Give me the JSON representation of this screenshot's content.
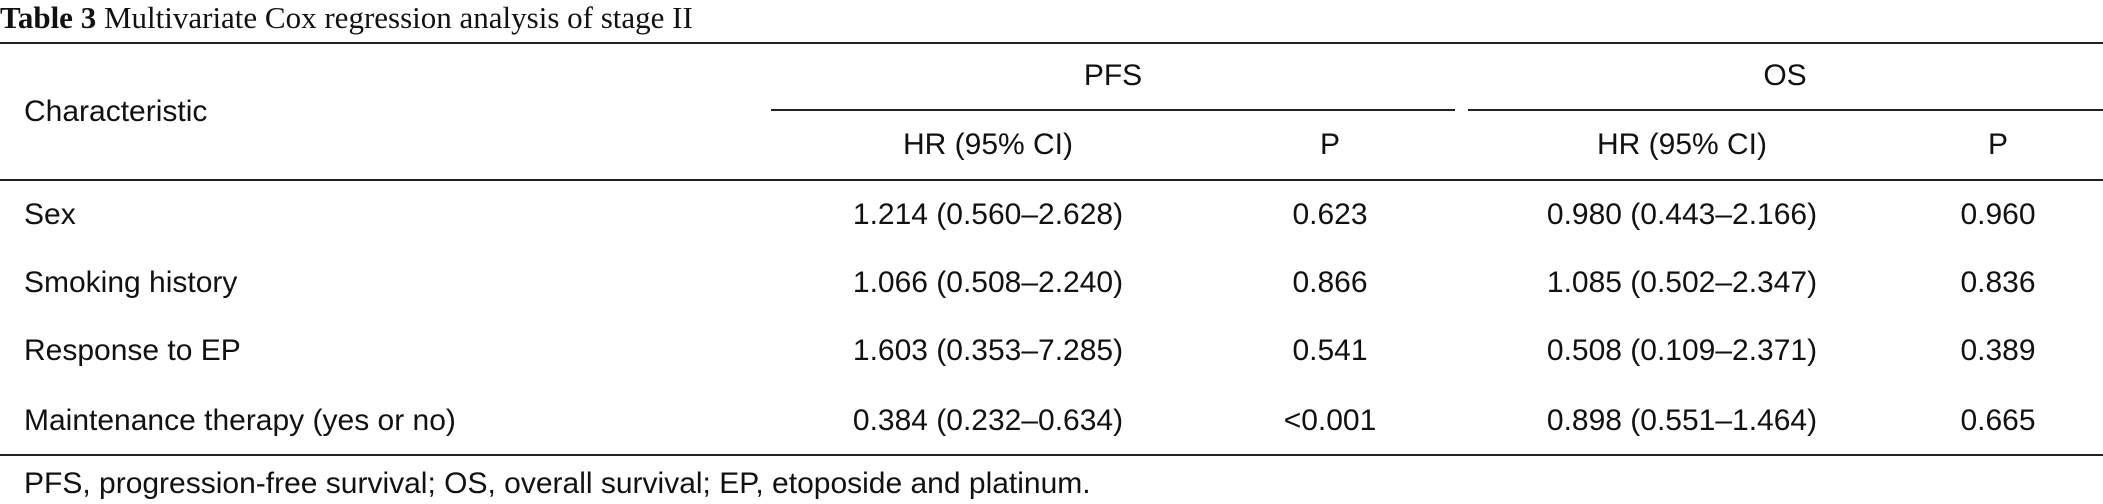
{
  "title": {
    "label": "Table 3",
    "text": "Multivariate Cox regression analysis of stage II"
  },
  "table": {
    "row_header": "Characteristic",
    "groups": [
      "PFS",
      "OS"
    ],
    "columns": [
      "HR (95% CI)",
      "P",
      "HR (95% CI)",
      "P"
    ],
    "rows": [
      [
        "Sex",
        "1.214 (0.560–2.628)",
        "0.623",
        "0.980 (0.443–2.166)",
        "0.960"
      ],
      [
        "Smoking history",
        "1.066 (0.508–2.240)",
        "0.866",
        "1.085 (0.502–2.347)",
        "0.836"
      ],
      [
        "Response to EP",
        "1.603 (0.353–7.285)",
        "0.541",
        "0.508 (0.109–2.371)",
        "0.389"
      ],
      [
        "Maintenance therapy (yes or no)",
        "0.384 (0.232–0.634)",
        "<0.001",
        "0.898 (0.551–1.464)",
        "0.665"
      ]
    ]
  },
  "footnote": "PFS, progression-free survival; OS, overall survival; EP, etoposide and platinum."
}
